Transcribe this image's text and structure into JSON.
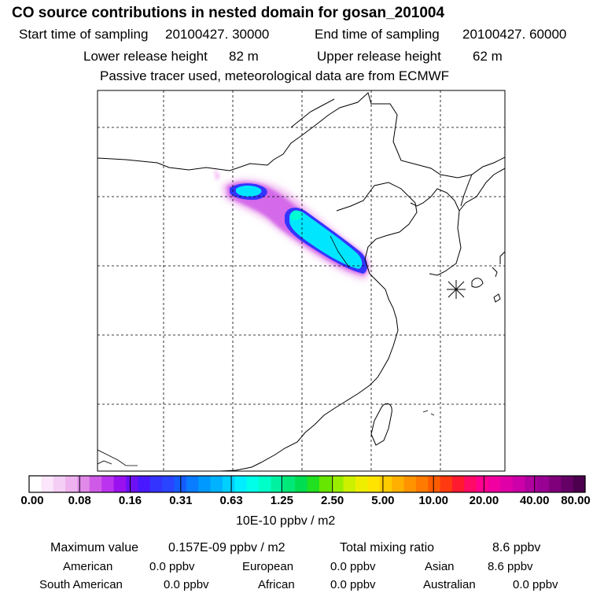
{
  "header": {
    "title": "CO  source contributions in nested domain for gosan_201004",
    "start_label": "Start time of sampling",
    "start_value": "20100427. 30000",
    "end_label": "End time of sampling",
    "end_value": "20100427. 60000",
    "lower_label": "Lower release height",
    "lower_value": "82 m",
    "upper_label": "Upper release height",
    "upper_value": "62 m",
    "note": "Passive tracer used, meteorological data are from ECMWF"
  },
  "colorbar": {
    "tick_labels": [
      "0.00",
      "0.08",
      "0.16",
      "0.31",
      "0.63",
      "1.25",
      "2.50",
      "5.00",
      "10.00",
      "20.00",
      "40.00",
      "80.00"
    ],
    "unit": "10E-10 ppbv / m2",
    "colors": [
      "#ffffff",
      "#fbe6fb",
      "#f5cef5",
      "#eeb2ee",
      "#e089e8",
      "#cf5ae8",
      "#bb33ee",
      "#9a11f0",
      "#6e10f4",
      "#4a18ff",
      "#3434ff",
      "#2a44ff",
      "#155cff",
      "#0a7cff",
      "#0099ff",
      "#00b2ff",
      "#00cfff",
      "#00eeff",
      "#00ffe8",
      "#00ffc8",
      "#00f2a0",
      "#00e878",
      "#00dd50",
      "#20e020",
      "#66e600",
      "#99ee00",
      "#ccf000",
      "#eeee00",
      "#ffe400",
      "#ffcc00",
      "#ffb000",
      "#ff9400",
      "#ff7a00",
      "#ff5c00",
      "#ff3a10",
      "#ff1a30",
      "#ff0a66",
      "#ff0090",
      "#f000a0",
      "#e000a8",
      "#cc00a8",
      "#b000a0",
      "#990094",
      "#80007c",
      "#660066",
      "#4d004d"
    ]
  },
  "stats": {
    "max_label": "Maximum value",
    "max_value": "0.157E-09 ppbv / m2",
    "total_label": "Total mixing ratio",
    "total_value": "8.6 ppbv",
    "regions": [
      {
        "name": "American",
        "value": "0.0 ppbv"
      },
      {
        "name": "European",
        "value": "0.0 ppbv"
      },
      {
        "name": "Asian",
        "value": "8.6 ppbv"
      },
      {
        "name": "South American",
        "value": "0.0 ppbv"
      },
      {
        "name": "African",
        "value": "0.0 ppbv"
      },
      {
        "name": "Australian",
        "value": "0.0 ppbv"
      }
    ]
  },
  "map": {
    "receptor_marker": "asterisk-icon"
  }
}
